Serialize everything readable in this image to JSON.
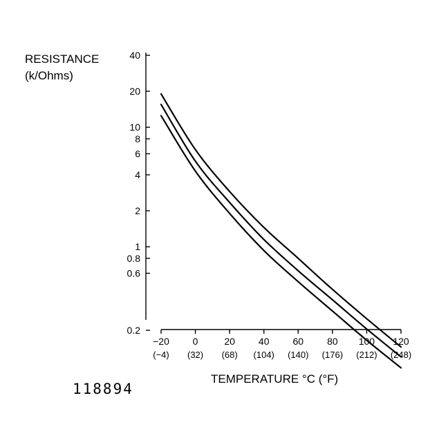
{
  "chart_data": {
    "type": "line",
    "ylabel_line1": "RESISTANCE",
    "ylabel_line2": "(k/Ohms)",
    "xlabel": "TEMPERATURE °C (°F)",
    "figure_id": "118894",
    "yscale": "log",
    "xlim": [
      -20,
      120
    ],
    "ylim": [
      0.1,
      40
    ],
    "y_ticks": [
      {
        "value": 40,
        "label": "40"
      },
      {
        "value": 20,
        "label": "20"
      },
      {
        "value": 10,
        "label": "10"
      },
      {
        "value": 8,
        "label": "8"
      },
      {
        "value": 6,
        "label": "6"
      },
      {
        "value": 4,
        "label": "4"
      },
      {
        "value": 2,
        "label": "2"
      },
      {
        "value": 1,
        "label": "1"
      },
      {
        "value": 0.8,
        "label": "0.8"
      },
      {
        "value": 0.6,
        "label": "0.6"
      },
      {
        "value": 0.2,
        "label": "0.2"
      }
    ],
    "x_ticks": [
      {
        "value": -20,
        "label": "−20",
        "sub": "(−4)"
      },
      {
        "value": 0,
        "label": "0",
        "sub": "(32)"
      },
      {
        "value": 20,
        "label": "20",
        "sub": "(68)"
      },
      {
        "value": 40,
        "label": "40",
        "sub": "(104)"
      },
      {
        "value": 60,
        "label": "60",
        "sub": "(140)"
      },
      {
        "value": 80,
        "label": "80",
        "sub": "(176)"
      },
      {
        "value": 100,
        "label": "100",
        "sub": "(212)"
      },
      {
        "value": 120,
        "label": "120",
        "sub": "(248)"
      }
    ],
    "grid": false,
    "series": [
      {
        "x": [
          -20,
          0,
          20,
          40,
          60,
          80,
          100,
          120
        ],
        "y": [
          19,
          6.5,
          2.9,
          1.45,
          0.8,
          0.44,
          0.25,
          0.145
        ]
      },
      {
        "x": [
          -20,
          0,
          20,
          40,
          60,
          80,
          100,
          120
        ],
        "y": [
          15.5,
          5.2,
          2.35,
          1.15,
          0.63,
          0.36,
          0.205,
          0.12
        ]
      },
      {
        "x": [
          -20,
          0,
          20,
          40,
          60,
          80,
          100,
          120
        ],
        "y": [
          12.5,
          4.3,
          1.9,
          0.93,
          0.51,
          0.29,
          0.165,
          0.097
        ]
      }
    ]
  }
}
